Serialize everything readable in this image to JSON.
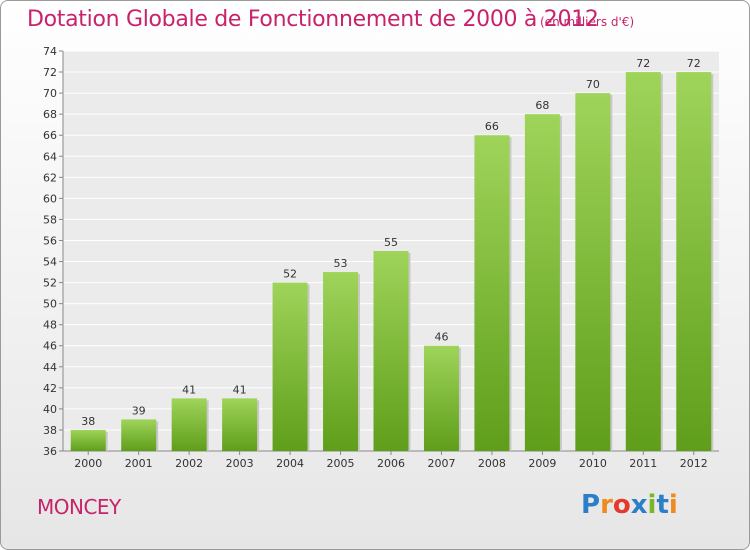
{
  "header": {
    "title": "Dotation Globale de Fonctionnement de 2000 à 2012",
    "unit": "(en milliers d'€)"
  },
  "footer": {
    "commune": "MONCEY",
    "logo": {
      "letters": [
        "P",
        "r",
        "o",
        "x",
        "i",
        "t",
        "i"
      ],
      "colors": [
        "#2a7fc8",
        "#f08a1c",
        "#e23a2b",
        "#2a7fc8",
        "#7bb52a",
        "#2a7fc8",
        "#f08a1c"
      ]
    }
  },
  "colors": {
    "bar_light": "#9fd45a",
    "bar_dark": "#5f9e1a",
    "title": "#c8236a"
  },
  "chart_data": {
    "type": "bar",
    "title": "Dotation Globale de Fonctionnement de 2000 à 2012",
    "unit": "(en milliers d'€)",
    "categories": [
      "2000",
      "2001",
      "2002",
      "2003",
      "2004",
      "2005",
      "2006",
      "2007",
      "2008",
      "2009",
      "2010",
      "2011",
      "2012"
    ],
    "values": [
      38,
      39,
      41,
      41,
      52,
      53,
      55,
      46,
      66,
      68,
      70,
      72,
      72
    ],
    "ylim": [
      36,
      74
    ],
    "yticks": [
      36,
      38,
      40,
      42,
      44,
      46,
      48,
      50,
      52,
      54,
      56,
      58,
      60,
      62,
      64,
      66,
      68,
      70,
      72,
      74
    ],
    "grid": true,
    "data_labels": true
  }
}
